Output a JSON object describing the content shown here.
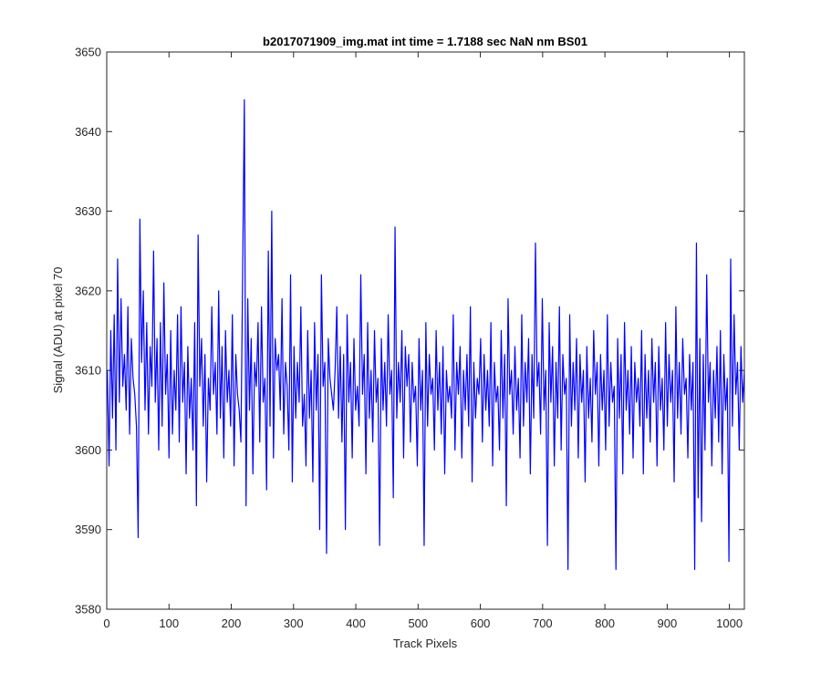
{
  "chart_data": {
    "type": "line",
    "title": "b2017071909_img.mat int time = 1.7188 sec  NaN nm BS01",
    "xlabel": "Track Pixels",
    "ylabel": "Signal (ADU) at pixel 70",
    "xlim": [
      0,
      1024
    ],
    "ylim": [
      3580,
      3650
    ],
    "xticks": [
      0,
      100,
      200,
      300,
      400,
      500,
      600,
      700,
      800,
      900,
      1000
    ],
    "yticks": [
      3580,
      3590,
      3600,
      3610,
      3620,
      3630,
      3640,
      3650
    ],
    "grid": false,
    "line_color": "#0000ff",
    "series": [
      {
        "values": [
          3610,
          3598,
          3615,
          3604,
          3617,
          3600,
          3624,
          3606,
          3619,
          3608,
          3612,
          3605,
          3618,
          3602,
          3614,
          3609,
          3607,
          3603,
          3589,
          3629,
          3611,
          3620,
          3605,
          3616,
          3602,
          3613,
          3608,
          3625,
          3606,
          3614,
          3600,
          3616,
          3603,
          3621,
          3607,
          3612,
          3599,
          3615,
          3602,
          3610,
          3605,
          3617,
          3601,
          3618,
          3606,
          3611,
          3597,
          3613,
          3604,
          3609,
          3600,
          3616,
          3593,
          3627,
          3608,
          3614,
          3603,
          3612,
          3596,
          3609,
          3605,
          3618,
          3607,
          3611,
          3602,
          3620,
          3604,
          3613,
          3599,
          3615,
          3606,
          3610,
          3603,
          3617,
          3598,
          3612,
          3607,
          3605,
          3601,
          3622,
          3644,
          3593,
          3619,
          3605,
          3614,
          3597,
          3611,
          3608,
          3616,
          3601,
          3618,
          3606,
          3609,
          3595,
          3625,
          3603,
          3630,
          3599,
          3614,
          3610,
          3612,
          3605,
          3619,
          3602,
          3611,
          3608,
          3600,
          3622,
          3596,
          3613,
          3604,
          3611,
          3606,
          3618,
          3603,
          3607,
          3598,
          3615,
          3604,
          3610,
          3596,
          3616,
          3605,
          3612,
          3590,
          3622,
          3608,
          3611,
          3587,
          3614,
          3609,
          3607,
          3605,
          3610,
          3618,
          3604,
          3613,
          3601,
          3612,
          3590,
          3617,
          3606,
          3611,
          3599,
          3614,
          3605,
          3608,
          3603,
          3622,
          3607,
          3612,
          3597,
          3616,
          3604,
          3610,
          3601,
          3615,
          3606,
          3609,
          3588,
          3614,
          3605,
          3611,
          3603,
          3617,
          3607,
          3610,
          3594,
          3628,
          3604,
          3611,
          3606,
          3615,
          3599,
          3613,
          3608,
          3612,
          3601,
          3611,
          3606,
          3608,
          3598,
          3614,
          3605,
          3610,
          3588,
          3616,
          3603,
          3612,
          3607,
          3609,
          3600,
          3615,
          3605,
          3611,
          3602,
          3613,
          3597,
          3610,
          3606,
          3608,
          3604,
          3617,
          3600,
          3611,
          3607,
          3613,
          3599,
          3610,
          3605,
          3612,
          3603,
          3618,
          3596,
          3611,
          3604,
          3609,
          3607,
          3614,
          3601,
          3612,
          3605,
          3610,
          3603,
          3616,
          3598,
          3611,
          3606,
          3608,
          3600,
          3615,
          3604,
          3612,
          3593,
          3619,
          3607,
          3610,
          3602,
          3613,
          3605,
          3609,
          3599,
          3617,
          3603,
          3611,
          3606,
          3614,
          3597,
          3612,
          3604,
          3626,
          3608,
          3611,
          3602,
          3619,
          3605,
          3610,
          3588,
          3616,
          3606,
          3613,
          3598,
          3611,
          3604,
          3618,
          3600,
          3612,
          3607,
          3609,
          3585,
          3617,
          3603,
          3611,
          3605,
          3614,
          3599,
          3612,
          3606,
          3610,
          3596,
          3613,
          3604,
          3609,
          3601,
          3615,
          3607,
          3611,
          3598,
          3612,
          3605,
          3610,
          3600,
          3617,
          3603,
          3611,
          3606,
          3608,
          3585,
          3614,
          3604,
          3612,
          3597,
          3616,
          3605,
          3610,
          3602,
          3613,
          3599,
          3611,
          3606,
          3609,
          3603,
          3615,
          3597,
          3612,
          3604,
          3610,
          3601,
          3614,
          3606,
          3611,
          3598,
          3613,
          3605,
          3609,
          3600,
          3616,
          3603,
          3612,
          3606,
          3610,
          3596,
          3618,
          3604,
          3611,
          3602,
          3614,
          3607,
          3609,
          3599,
          3612,
          3605,
          3611,
          3585,
          3626,
          3594,
          3614,
          3591,
          3612,
          3600,
          3622,
          3606,
          3611,
          3598,
          3610,
          3604,
          3613,
          3601,
          3615,
          3597,
          3612,
          3605,
          3609,
          3586,
          3624,
          3603,
          3617,
          3607,
          3611,
          3600,
          3613,
          3606,
          3610
        ]
      }
    ]
  }
}
